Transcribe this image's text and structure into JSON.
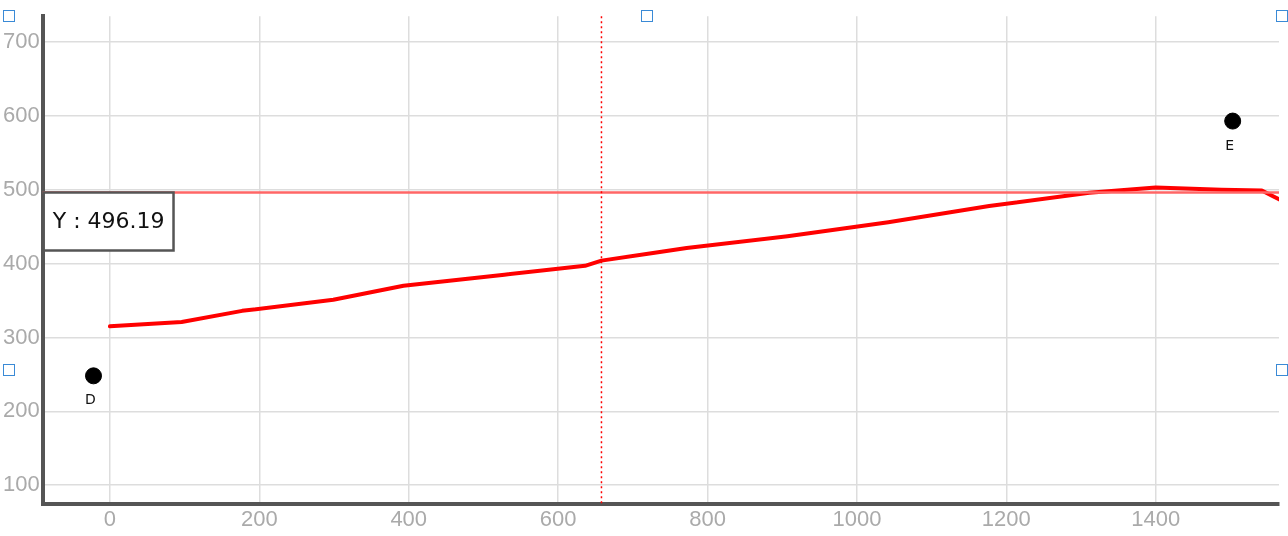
{
  "chart_data": {
    "type": "line",
    "xlim": [
      -90,
      1565
    ],
    "ylim": [
      75,
      735
    ],
    "xticks": [
      0,
      200,
      400,
      600,
      800,
      1000,
      1200,
      1400
    ],
    "yticks": [
      100,
      200,
      300,
      400,
      500,
      600,
      700
    ],
    "grid": true,
    "legend": false,
    "series": [
      {
        "color": "#ff0000",
        "marker": "none",
        "line_style": "solid",
        "x": [
          0,
          96,
          177,
          299,
          393,
          528,
          636,
          658,
          772,
          907,
          1042,
          1177,
          1311,
          1400,
          1488,
          1542,
          1565
        ],
        "values": [
          315,
          321,
          336,
          351,
          370,
          385,
          397,
          404,
          421,
          437,
          456,
          478,
          496,
          503,
          500,
          499,
          487
        ]
      },
      {
        "type": "scatter",
        "color": "#000000",
        "marker": "circle",
        "x": [
          -22,
          1503
        ],
        "values": [
          248,
          593
        ]
      }
    ],
    "ref_lines": [
      {
        "axis": "y",
        "value": 496.19,
        "label": "Y : 496.19",
        "color": "#ff6666",
        "line_style": "solid"
      },
      {
        "axis": "x",
        "value": 658,
        "color": "#ff0000",
        "line_style": "dotted"
      }
    ],
    "annotations": [
      {
        "text": "D",
        "x": -22,
        "y": 248
      },
      {
        "text": "E",
        "x": 1503,
        "y": 593
      }
    ]
  }
}
